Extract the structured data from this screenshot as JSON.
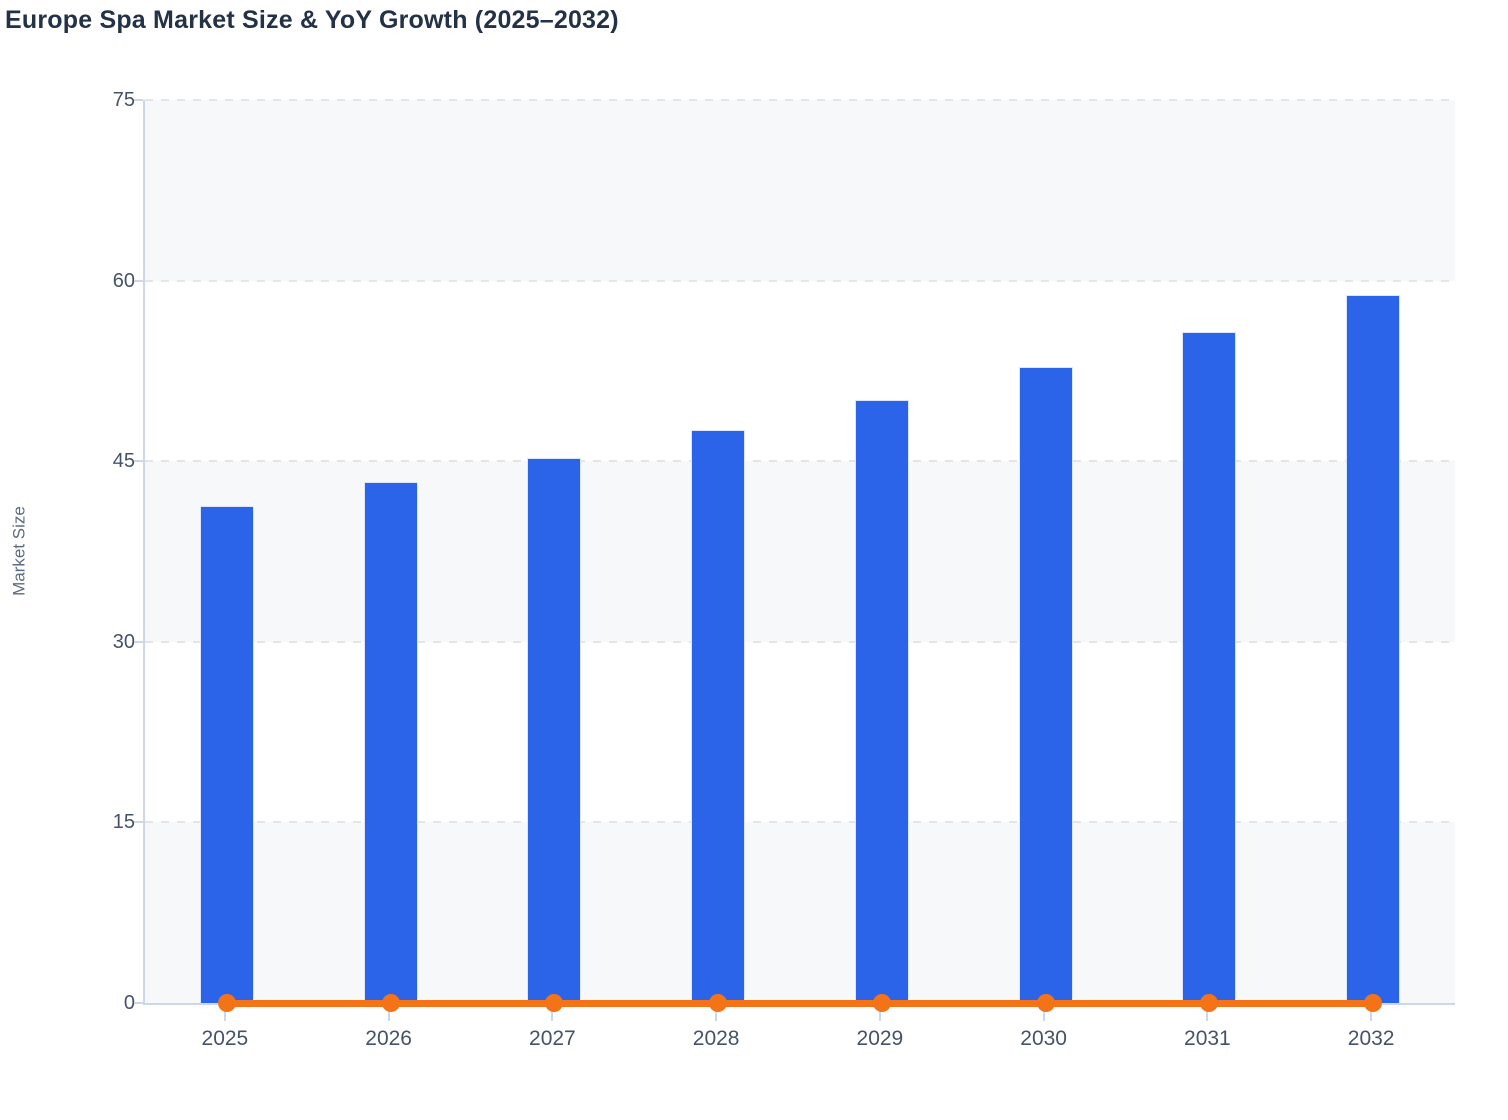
{
  "title": "Europe Spa Market Size & YoY Growth (2025–2032)",
  "colors": {
    "background": "#ffffff",
    "title_text": "#233247",
    "axis_title_text": "#5c6b80",
    "tick_label_text": "#45536a",
    "axis_line": "#ccd7ee",
    "band_fill": "#f7f8fa",
    "band_fill_alt": "#ffffff",
    "gridline": "#e3e5e9",
    "bar_fill": "#2b64e8",
    "bar_border": "#dbe6fa",
    "line_stroke": "#f47317",
    "marker_fill": "#f47317"
  },
  "chart_data": {
    "type": "bar",
    "title": "Europe Spa Market Size & YoY Growth (2025–2032)",
    "xlabel": "",
    "ylabel": "Market Size",
    "ylim": [
      0,
      75
    ],
    "yticks": [
      0,
      15,
      30,
      45,
      60,
      75
    ],
    "grid": "horizontal dashed gridlines with alternating background bands",
    "legend": "none",
    "categories": [
      "2025",
      "2026",
      "2027",
      "2028",
      "2029",
      "2030",
      "2031",
      "2032"
    ],
    "series": [
      {
        "name": "Market Size",
        "type": "bar",
        "color": "#2b64e8",
        "values": [
          41.3,
          43.3,
          45.3,
          47.6,
          50.1,
          52.8,
          55.7,
          58.8
        ]
      },
      {
        "name": "YoY Growth",
        "type": "line",
        "color": "#f47317",
        "values": [
          0,
          0,
          0,
          0,
          0,
          0,
          0,
          0
        ],
        "note": "rendered as a flat orange line with circular markers sitting at ~0 on the Market Size axis; actual growth values are not readable from the chart"
      }
    ]
  }
}
